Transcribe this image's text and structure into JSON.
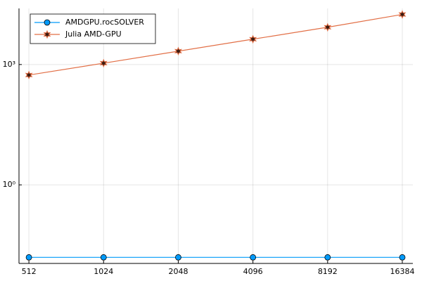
{
  "chart_data": {
    "type": "line",
    "x": [
      512,
      1024,
      2048,
      4096,
      8192,
      16384
    ],
    "xlim": [
      467,
      18070
    ],
    "xticks": [
      512,
      1024,
      2048,
      4096,
      8192,
      16384
    ],
    "xscale": "log2",
    "ylim": [
      0.011,
      25000
    ],
    "yscale": "log",
    "yticks": [
      {
        "value": 1,
        "label": "10⁰"
      },
      {
        "value": 1000,
        "label": "10³"
      }
    ],
    "grid": true,
    "legend": "top-left",
    "series": [
      {
        "name": "AMDGPU.rocSOLVER",
        "color": "#009AFA",
        "marker": "circle",
        "values": [
          0.0156,
          0.0156,
          0.0156,
          0.0156,
          0.0156,
          0.0156
        ]
      },
      {
        "name": "Julia AMD-GPU",
        "color": "#E26F46",
        "marker": "star",
        "values": [
          546,
          1080,
          2150,
          4280,
          8500,
          17700
        ]
      }
    ]
  }
}
